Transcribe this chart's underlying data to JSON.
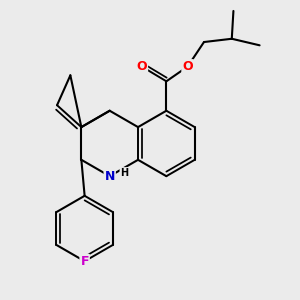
{
  "background_color": "#ebebeb",
  "bond_color": "#000000",
  "bond_width": 1.5,
  "atom_colors": {
    "O": "#ff0000",
    "N": "#0000cc",
    "F": "#cc00cc",
    "C": "#000000"
  },
  "font_size_atom": 9
}
